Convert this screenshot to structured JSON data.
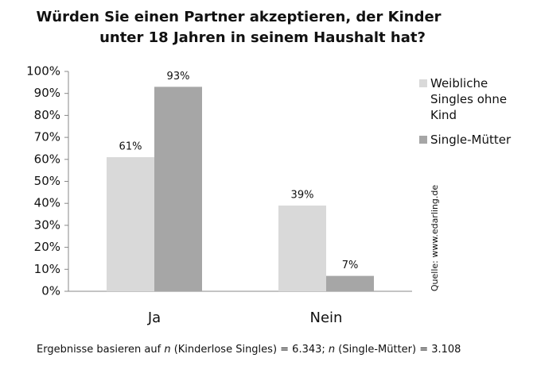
{
  "chart_data": {
    "type": "bar",
    "title": [
      "Würden Sie einen Partner akzeptieren, der Kinder",
      "unter 18 Jahren in seinem Haushalt hat?"
    ],
    "categories": [
      "Ja",
      "Nein"
    ],
    "series": [
      {
        "name": "Weibliche Singles ohne Kind",
        "color": "#d9d9d9",
        "values": [
          61,
          39
        ],
        "value_labels": [
          "61%",
          "39%"
        ]
      },
      {
        "name": "Single-Mütter",
        "color": "#a6a6a6",
        "values": [
          93,
          7
        ],
        "value_labels": [
          "93%",
          "7%"
        ]
      }
    ],
    "ylim": [
      0,
      100
    ],
    "yticks": [
      {
        "value": 0,
        "label": "0%"
      },
      {
        "value": 10,
        "label": "10%"
      },
      {
        "value": 20,
        "label": "20%"
      },
      {
        "value": 30,
        "label": "30%"
      },
      {
        "value": 40,
        "label": "40%"
      },
      {
        "value": 50,
        "label": "50%"
      },
      {
        "value": 60,
        "label": "60%"
      },
      {
        "value": 70,
        "label": "70%"
      },
      {
        "value": 80,
        "label": "80%"
      },
      {
        "value": 90,
        "label": "90%"
      },
      {
        "value": 100,
        "label": "100%"
      }
    ],
    "grid": false,
    "legend": "right",
    "source": "Quelle: www.edarling.de",
    "footnote": [
      "Ergebnisse basieren auf ",
      "n",
      " (Kinderlose Singles) = 6.343; ",
      "n",
      " (Single-Mütter) = 3.108"
    ]
  }
}
